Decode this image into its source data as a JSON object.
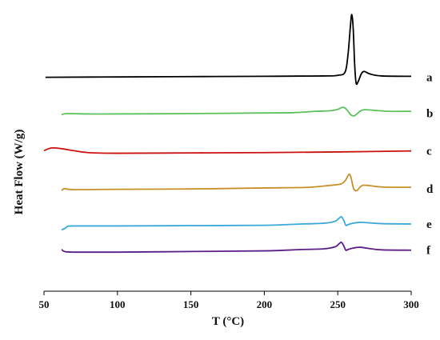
{
  "chart_data": {
    "type": "line",
    "title": "",
    "xlabel": "T (°C)",
    "ylabel": "Heat Flow (W/g)",
    "xlim": [
      50,
      300
    ],
    "xticks": [
      50,
      100,
      150,
      200,
      250,
      300
    ],
    "yticks_shown": false,
    "grid": false,
    "legend": "none",
    "series": [
      {
        "name": "a",
        "color": "#000000",
        "label_y": 0.0,
        "points": [
          [
            51,
            0.0
          ],
          [
            100,
            0.05
          ],
          [
            150,
            0.1
          ],
          [
            200,
            0.15
          ],
          [
            240,
            0.2
          ],
          [
            250,
            0.3
          ],
          [
            255,
            0.8
          ],
          [
            257,
            3.5
          ],
          [
            258.5,
            7.5
          ],
          [
            259.5,
            9.6
          ],
          [
            260.5,
            7.5
          ],
          [
            261.5,
            2.0
          ],
          [
            262.5,
            -0.9
          ],
          [
            264,
            -0.6
          ],
          [
            266,
            0.5
          ],
          [
            268,
            0.9
          ],
          [
            272,
            0.5
          ],
          [
            280,
            0.2
          ],
          [
            300,
            0.15
          ]
        ]
      },
      {
        "name": "b",
        "color": "#5cc05c",
        "label_y": -5.5,
        "points": [
          [
            62,
            -5.7
          ],
          [
            66,
            -5.55
          ],
          [
            80,
            -5.6
          ],
          [
            100,
            -5.6
          ],
          [
            150,
            -5.55
          ],
          [
            200,
            -5.45
          ],
          [
            220,
            -5.4
          ],
          [
            235,
            -5.2
          ],
          [
            245,
            -5.1
          ],
          [
            250,
            -4.9
          ],
          [
            253,
            -4.6
          ],
          [
            255,
            -4.7
          ],
          [
            257,
            -5.2
          ],
          [
            259,
            -5.75
          ],
          [
            261,
            -5.9
          ],
          [
            263,
            -5.6
          ],
          [
            265,
            -5.2
          ],
          [
            268,
            -4.95
          ],
          [
            275,
            -5.05
          ],
          [
            285,
            -5.2
          ],
          [
            300,
            -5.2
          ]
        ]
      },
      {
        "name": "c",
        "color": "#cc1111",
        "label_y": -11.2,
        "points": [
          [
            50,
            -11.2
          ],
          [
            55,
            -10.8
          ],
          [
            62,
            -10.9
          ],
          [
            70,
            -11.2
          ],
          [
            80,
            -11.5
          ],
          [
            100,
            -11.6
          ],
          [
            150,
            -11.55
          ],
          [
            200,
            -11.5
          ],
          [
            250,
            -11.4
          ],
          [
            300,
            -11.25
          ]
        ]
      },
      {
        "name": "d",
        "color": "#c8902a",
        "label_y": -17.0,
        "points": [
          [
            62,
            -17.3
          ],
          [
            64,
            -17.0
          ],
          [
            70,
            -17.15
          ],
          [
            100,
            -17.1
          ],
          [
            150,
            -17.05
          ],
          [
            200,
            -16.9
          ],
          [
            230,
            -16.8
          ],
          [
            245,
            -16.5
          ],
          [
            252,
            -16.3
          ],
          [
            255,
            -15.8
          ],
          [
            257,
            -15.0
          ],
          [
            258,
            -14.8
          ],
          [
            259,
            -15.3
          ],
          [
            260,
            -16.3
          ],
          [
            261,
            -17.1
          ],
          [
            263,
            -17.3
          ],
          [
            265,
            -16.8
          ],
          [
            267,
            -16.5
          ],
          [
            270,
            -16.5
          ],
          [
            280,
            -16.75
          ],
          [
            300,
            -16.8
          ]
        ]
      },
      {
        "name": "e",
        "color": "#3aa8d8",
        "label_y": -22.4,
        "points": [
          [
            62,
            -23.3
          ],
          [
            64,
            -23.1
          ],
          [
            66,
            -22.8
          ],
          [
            70,
            -22.7
          ],
          [
            100,
            -22.7
          ],
          [
            150,
            -22.65
          ],
          [
            200,
            -22.6
          ],
          [
            225,
            -22.4
          ],
          [
            240,
            -22.3
          ],
          [
            248,
            -22.0
          ],
          [
            251,
            -21.5
          ],
          [
            252.5,
            -21.3
          ],
          [
            254,
            -21.8
          ],
          [
            255.5,
            -22.6
          ],
          [
            257,
            -22.5
          ],
          [
            260,
            -22.3
          ],
          [
            265,
            -22.15
          ],
          [
            270,
            -22.2
          ],
          [
            280,
            -22.35
          ],
          [
            300,
            -22.4
          ]
        ]
      },
      {
        "name": "f",
        "color": "#5c1f8a",
        "label_y": -26.4,
        "points": [
          [
            62,
            -26.3
          ],
          [
            64,
            -26.6
          ],
          [
            70,
            -26.7
          ],
          [
            100,
            -26.7
          ],
          [
            150,
            -26.6
          ],
          [
            200,
            -26.5
          ],
          [
            225,
            -26.3
          ],
          [
            240,
            -26.2
          ],
          [
            248,
            -25.9
          ],
          [
            251,
            -25.4
          ],
          [
            252.5,
            -25.2
          ],
          [
            254,
            -25.7
          ],
          [
            255.5,
            -26.4
          ],
          [
            257,
            -26.3
          ],
          [
            260,
            -26.1
          ],
          [
            265,
            -25.95
          ],
          [
            270,
            -26.1
          ],
          [
            280,
            -26.35
          ],
          [
            300,
            -26.4
          ]
        ]
      }
    ]
  }
}
